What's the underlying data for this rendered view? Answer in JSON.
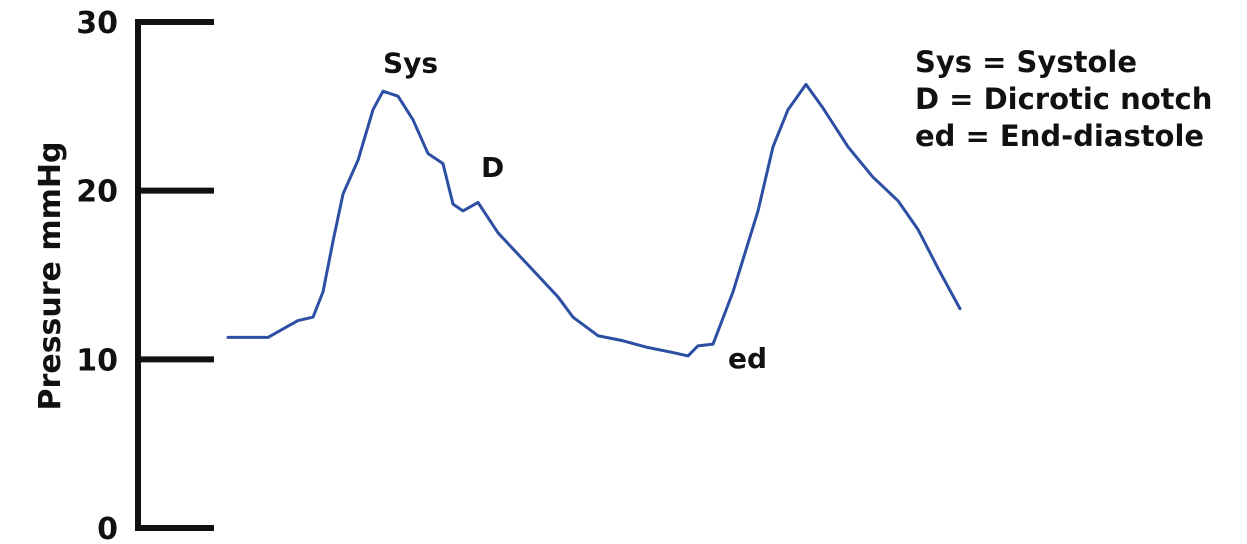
{
  "chart_data": {
    "type": "line",
    "ylabel": "Pressure mmHg",
    "xlabel": "",
    "ylim": [
      0,
      30
    ],
    "yticks": [
      {
        "value": 0,
        "label": "0"
      },
      {
        "value": 10,
        "label": "10"
      },
      {
        "value": 20,
        "label": "20"
      },
      {
        "value": 30,
        "label": "30"
      }
    ],
    "grid": false,
    "legend_position": "top-right",
    "series": [
      {
        "color": "#2c4fa3",
        "points": [
          [
            0,
            11.3
          ],
          [
            40,
            11.3
          ],
          [
            55,
            11.8
          ],
          [
            70,
            12.3
          ],
          [
            85,
            12.5
          ],
          [
            95,
            14.0
          ],
          [
            105,
            17.0
          ],
          [
            115,
            19.8
          ],
          [
            130,
            21.8
          ],
          [
            145,
            24.8
          ],
          [
            155,
            25.9
          ],
          [
            170,
            25.6
          ],
          [
            185,
            24.2
          ],
          [
            200,
            22.2
          ],
          [
            215,
            21.6
          ],
          [
            225,
            19.2
          ],
          [
            235,
            18.8
          ],
          [
            250,
            19.3
          ],
          [
            270,
            17.5
          ],
          [
            300,
            15.6
          ],
          [
            330,
            13.7
          ],
          [
            345,
            12.5
          ],
          [
            370,
            11.4
          ],
          [
            395,
            11.1
          ],
          [
            420,
            10.7
          ],
          [
            445,
            10.4
          ],
          [
            460,
            10.2
          ],
          [
            470,
            10.8
          ],
          [
            485,
            10.9
          ],
          [
            505,
            14.0
          ],
          [
            530,
            18.8
          ],
          [
            545,
            22.6
          ],
          [
            560,
            24.8
          ],
          [
            578,
            26.3
          ],
          [
            595,
            24.9
          ],
          [
            620,
            22.6
          ],
          [
            645,
            20.8
          ],
          [
            670,
            19.4
          ],
          [
            690,
            17.7
          ],
          [
            710,
            15.4
          ],
          [
            732,
            13.0
          ]
        ]
      }
    ],
    "annotations": [
      {
        "text": "Sys",
        "x": 155,
        "y": 27.0
      },
      {
        "text": "D",
        "x": 253,
        "y": 20.8
      },
      {
        "text": "ed",
        "x": 500,
        "y": 9.5
      }
    ],
    "legend": [
      "Sys = Systole",
      "D = Dicrotic notch",
      "ed = End-diastole"
    ]
  }
}
